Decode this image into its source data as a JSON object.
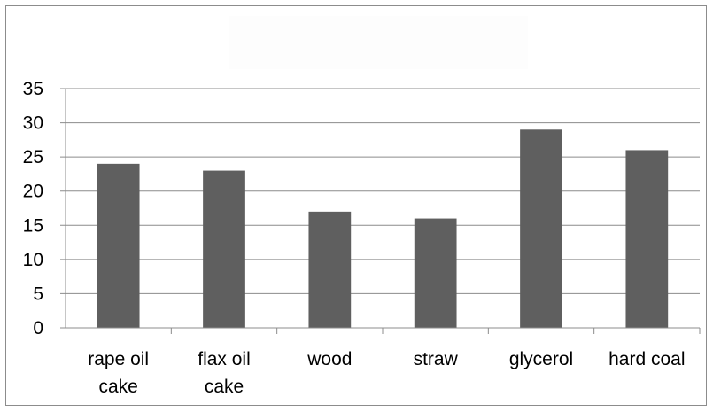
{
  "chart_data": {
    "type": "bar",
    "title": "",
    "xlabel": "",
    "ylabel": "",
    "categories": [
      [
        "rape oil",
        "cake"
      ],
      [
        "flax oil",
        "cake"
      ],
      [
        "wood"
      ],
      [
        "straw"
      ],
      [
        "glycerol"
      ],
      [
        "hard coal"
      ]
    ],
    "values": [
      24,
      23,
      17,
      16,
      29,
      26
    ],
    "ylim": [
      0,
      35
    ],
    "yticks": [
      0,
      5,
      10,
      15,
      20,
      25,
      30,
      35
    ],
    "grid": true,
    "legend": "none",
    "colors": {
      "bar": "#5f5f5f",
      "grid": "#8c8c8c",
      "axis": "#8c8c8c",
      "frame": "#8c8c8c"
    }
  }
}
